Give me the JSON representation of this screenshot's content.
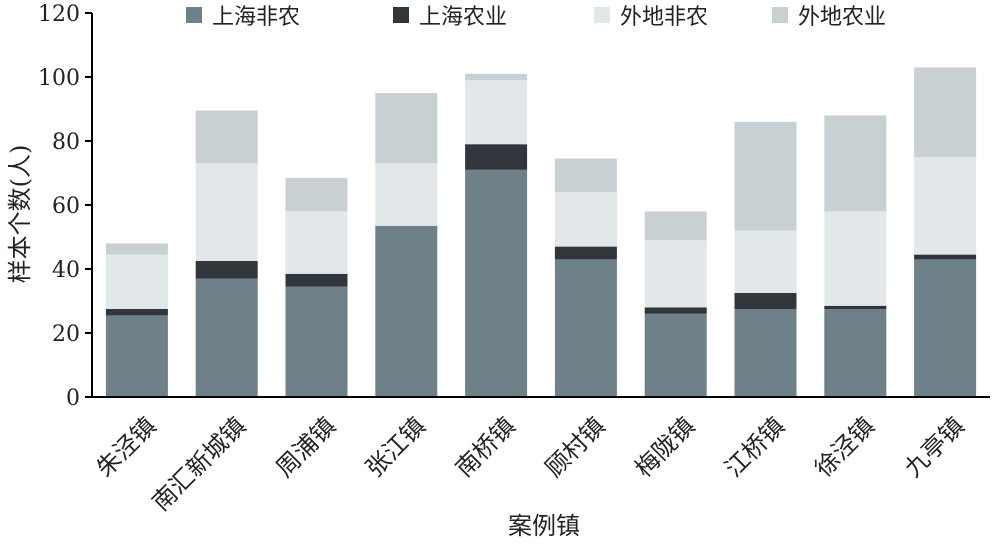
{
  "chart_data": {
    "type": "bar",
    "stacked": true,
    "categories": [
      "朱泾镇",
      "南汇新城镇",
      "周浦镇",
      "张江镇",
      "南桥镇",
      "顾村镇",
      "梅陇镇",
      "江桥镇",
      "徐泾镇",
      "九亭镇"
    ],
    "series": [
      {
        "name": "上海非农",
        "color": "#6e8088",
        "values": [
          25.5,
          37,
          34.5,
          53.5,
          71,
          43,
          26,
          27.5,
          27.5,
          43
        ]
      },
      {
        "name": "上海农业",
        "color": "#30363b",
        "values": [
          2,
          5.5,
          4,
          0,
          8,
          4,
          2,
          5,
          1,
          1.5
        ]
      },
      {
        "name": "外地非农",
        "color": "#e2e7ea",
        "values": [
          17,
          30.5,
          19.5,
          19.5,
          20,
          17,
          21,
          19.5,
          29.5,
          30.5
        ]
      },
      {
        "name": "外地农业",
        "color": "#c9d0d4",
        "values": [
          3.5,
          16.5,
          10.5,
          22,
          2,
          10.5,
          9,
          34,
          30,
          28
        ]
      }
    ],
    "xlabel": "案例镇",
    "ylabel": "样本个数(人)",
    "ylim": [
      0,
      120
    ],
    "yticks": [
      0,
      20,
      40,
      60,
      80,
      100,
      120
    ],
    "grid": false,
    "legend_position": "top"
  }
}
